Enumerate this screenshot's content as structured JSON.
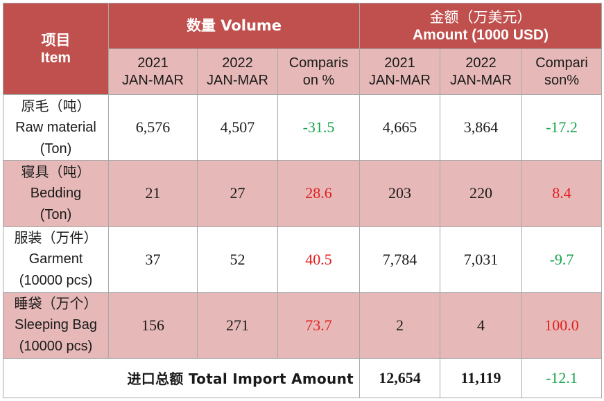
{
  "header": {
    "item_cn": "项目",
    "item_en": "Item",
    "volume": "数量  Volume",
    "amount_cn": "金额（万美元）",
    "amount_en": "Amount (1000 USD)",
    "sub": [
      {
        "l1": "2021",
        "l2": "JAN-MAR"
      },
      {
        "l1": "2022",
        "l2": "JAN-MAR"
      },
      {
        "l1": "Comparis",
        "l2": "on %"
      },
      {
        "l1": "2021",
        "l2": "JAN-MAR"
      },
      {
        "l1": "2022",
        "l2": "JAN-MAR"
      },
      {
        "l1": "Compari",
        "l2": "son%"
      }
    ]
  },
  "rows": [
    {
      "cn": "原毛（吨）",
      "en": "Raw material",
      "unit": "(Ton)",
      "v2021": "6,576",
      "v2022": "4,507",
      "vcmp": "-31.5",
      "a2021": "4,665",
      "a2022": "3,864",
      "acmp": "-17.2"
    },
    {
      "cn": "寝具（吨）",
      "en": "Bedding",
      "unit": "(Ton)",
      "v2021": "21",
      "v2022": "27",
      "vcmp": "28.6",
      "a2021": "203",
      "a2022": "220",
      "acmp": "8.4"
    },
    {
      "cn": "服装（万件）",
      "en": "Garment",
      "unit": "(10000 pcs)",
      "v2021": "37",
      "v2022": "52",
      "vcmp": "40.5",
      "a2021": "7,784",
      "a2022": "7,031",
      "acmp": "-9.7"
    },
    {
      "cn": "睡袋（万个）",
      "en": "Sleeping Bag",
      "unit": "(10000 pcs)",
      "v2021": "156",
      "v2022": "271",
      "vcmp": "73.7",
      "a2021": "2",
      "a2022": "4",
      "acmp": "100.0"
    }
  ],
  "total": {
    "label": "进口总额 Total Import  Amount",
    "a2021": "12,654",
    "a2022": "11,119",
    "acmp": "-12.1"
  },
  "colors": {
    "header_bg": "#c0504d",
    "subheader_bg": "#e6b9b8",
    "negative": "#17a34a",
    "positive": "#e31d1d"
  }
}
